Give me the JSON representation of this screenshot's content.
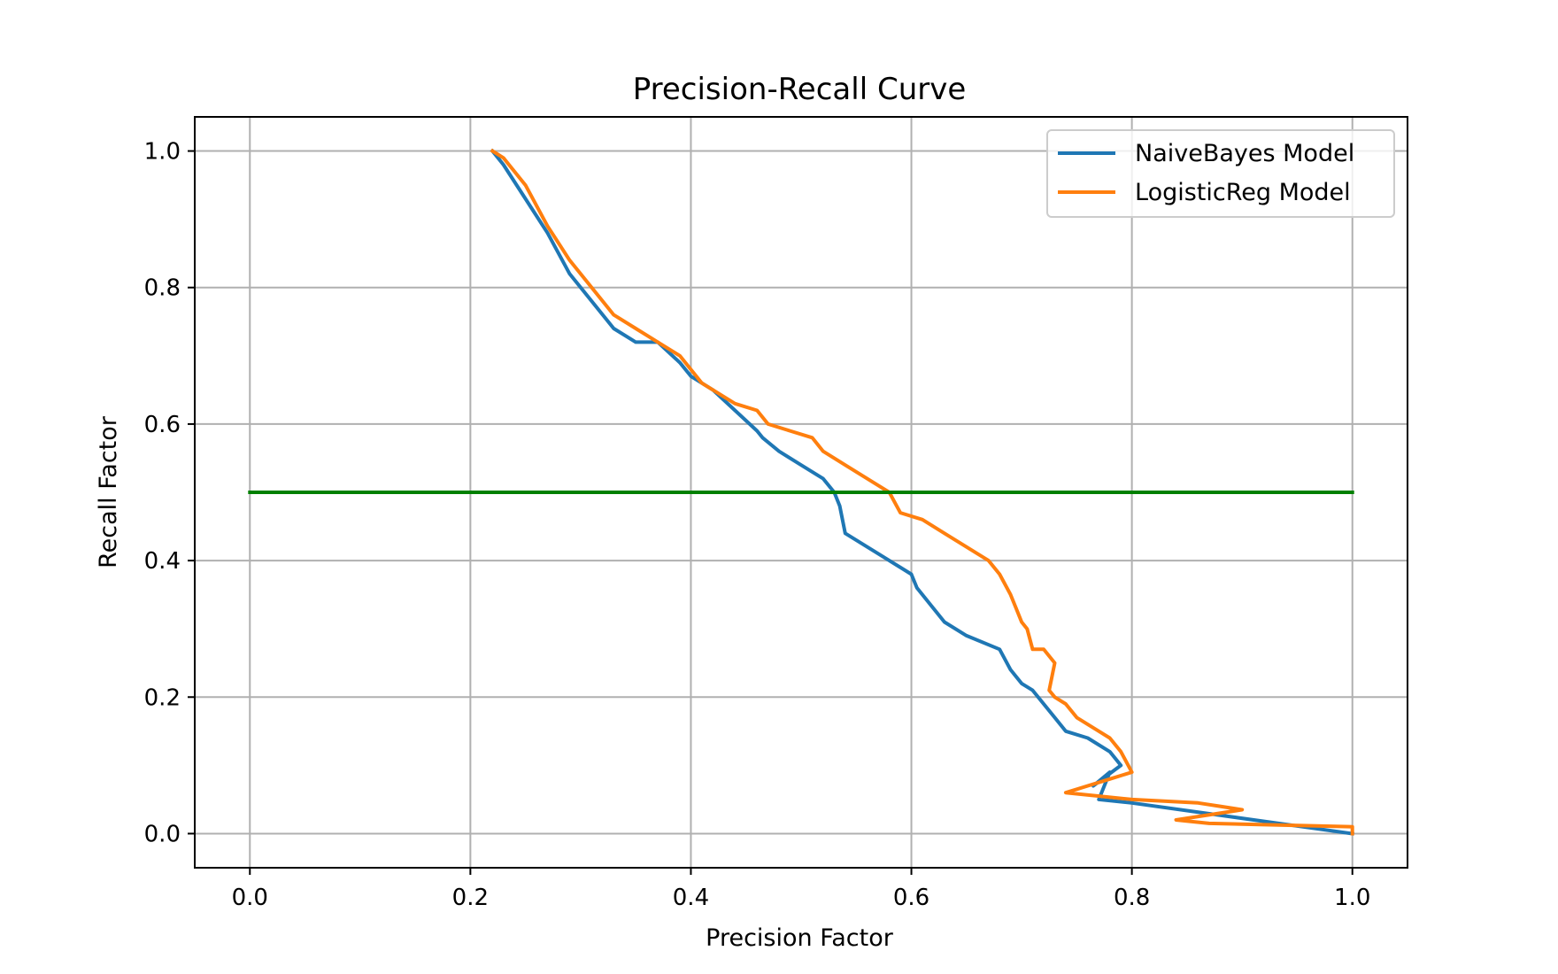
{
  "chart_data": {
    "type": "line",
    "title": "Precision-Recall Curve",
    "xlabel": "Precision Factor",
    "ylabel": "Recall Factor",
    "xlim": [
      -0.05,
      1.05
    ],
    "ylim": [
      -0.05,
      1.05
    ],
    "x_ticks": [
      "0.0",
      "0.2",
      "0.4",
      "0.6",
      "0.8",
      "1.0"
    ],
    "y_ticks": [
      "0.0",
      "0.2",
      "0.4",
      "0.6",
      "0.8",
      "1.0"
    ],
    "grid": true,
    "legend_position": "top-right",
    "series": [
      {
        "name": "NaiveBayes Model",
        "color": "#1f77b4",
        "x": [
          0.22,
          0.23,
          0.25,
          0.27,
          0.29,
          0.31,
          0.33,
          0.35,
          0.37,
          0.39,
          0.4,
          0.42,
          0.44,
          0.46,
          0.465,
          0.48,
          0.5,
          0.52,
          0.53,
          0.535,
          0.54,
          0.56,
          0.58,
          0.6,
          0.605,
          0.62,
          0.63,
          0.65,
          0.68,
          0.69,
          0.7,
          0.71,
          0.72,
          0.73,
          0.74,
          0.76,
          0.78,
          0.79,
          0.765,
          0.78,
          0.77,
          0.8,
          1.0
        ],
        "y": [
          1.0,
          0.98,
          0.93,
          0.88,
          0.82,
          0.78,
          0.74,
          0.72,
          0.72,
          0.69,
          0.67,
          0.65,
          0.62,
          0.59,
          0.58,
          0.56,
          0.54,
          0.52,
          0.5,
          0.48,
          0.44,
          0.42,
          0.4,
          0.38,
          0.36,
          0.33,
          0.31,
          0.29,
          0.27,
          0.24,
          0.22,
          0.21,
          0.19,
          0.17,
          0.15,
          0.14,
          0.12,
          0.1,
          0.07,
          0.09,
          0.05,
          0.045,
          0.0
        ]
      },
      {
        "name": "LogisticReg Model",
        "color": "#ff7f0e",
        "x": [
          0.22,
          0.23,
          0.25,
          0.27,
          0.29,
          0.31,
          0.33,
          0.35,
          0.37,
          0.39,
          0.41,
          0.44,
          0.46,
          0.47,
          0.49,
          0.51,
          0.52,
          0.54,
          0.57,
          0.58,
          0.59,
          0.61,
          0.63,
          0.65,
          0.67,
          0.68,
          0.69,
          0.695,
          0.7,
          0.705,
          0.71,
          0.72,
          0.73,
          0.725,
          0.73,
          0.74,
          0.75,
          0.77,
          0.78,
          0.79,
          0.8,
          0.78,
          0.74,
          0.8,
          0.86,
          0.88,
          0.9,
          0.84,
          0.87,
          1.0,
          1.0
        ],
        "y": [
          1.0,
          0.99,
          0.95,
          0.89,
          0.84,
          0.8,
          0.76,
          0.74,
          0.72,
          0.7,
          0.66,
          0.63,
          0.62,
          0.6,
          0.59,
          0.58,
          0.56,
          0.54,
          0.51,
          0.5,
          0.47,
          0.46,
          0.44,
          0.42,
          0.4,
          0.38,
          0.35,
          0.33,
          0.31,
          0.3,
          0.27,
          0.27,
          0.25,
          0.21,
          0.2,
          0.19,
          0.17,
          0.15,
          0.14,
          0.12,
          0.09,
          0.08,
          0.06,
          0.05,
          0.045,
          0.04,
          0.035,
          0.02,
          0.015,
          0.01,
          0.0
        ]
      },
      {
        "name": "",
        "color": "#008000",
        "x": [
          0.0,
          1.0
        ],
        "y": [
          0.5,
          0.5
        ]
      }
    ]
  }
}
